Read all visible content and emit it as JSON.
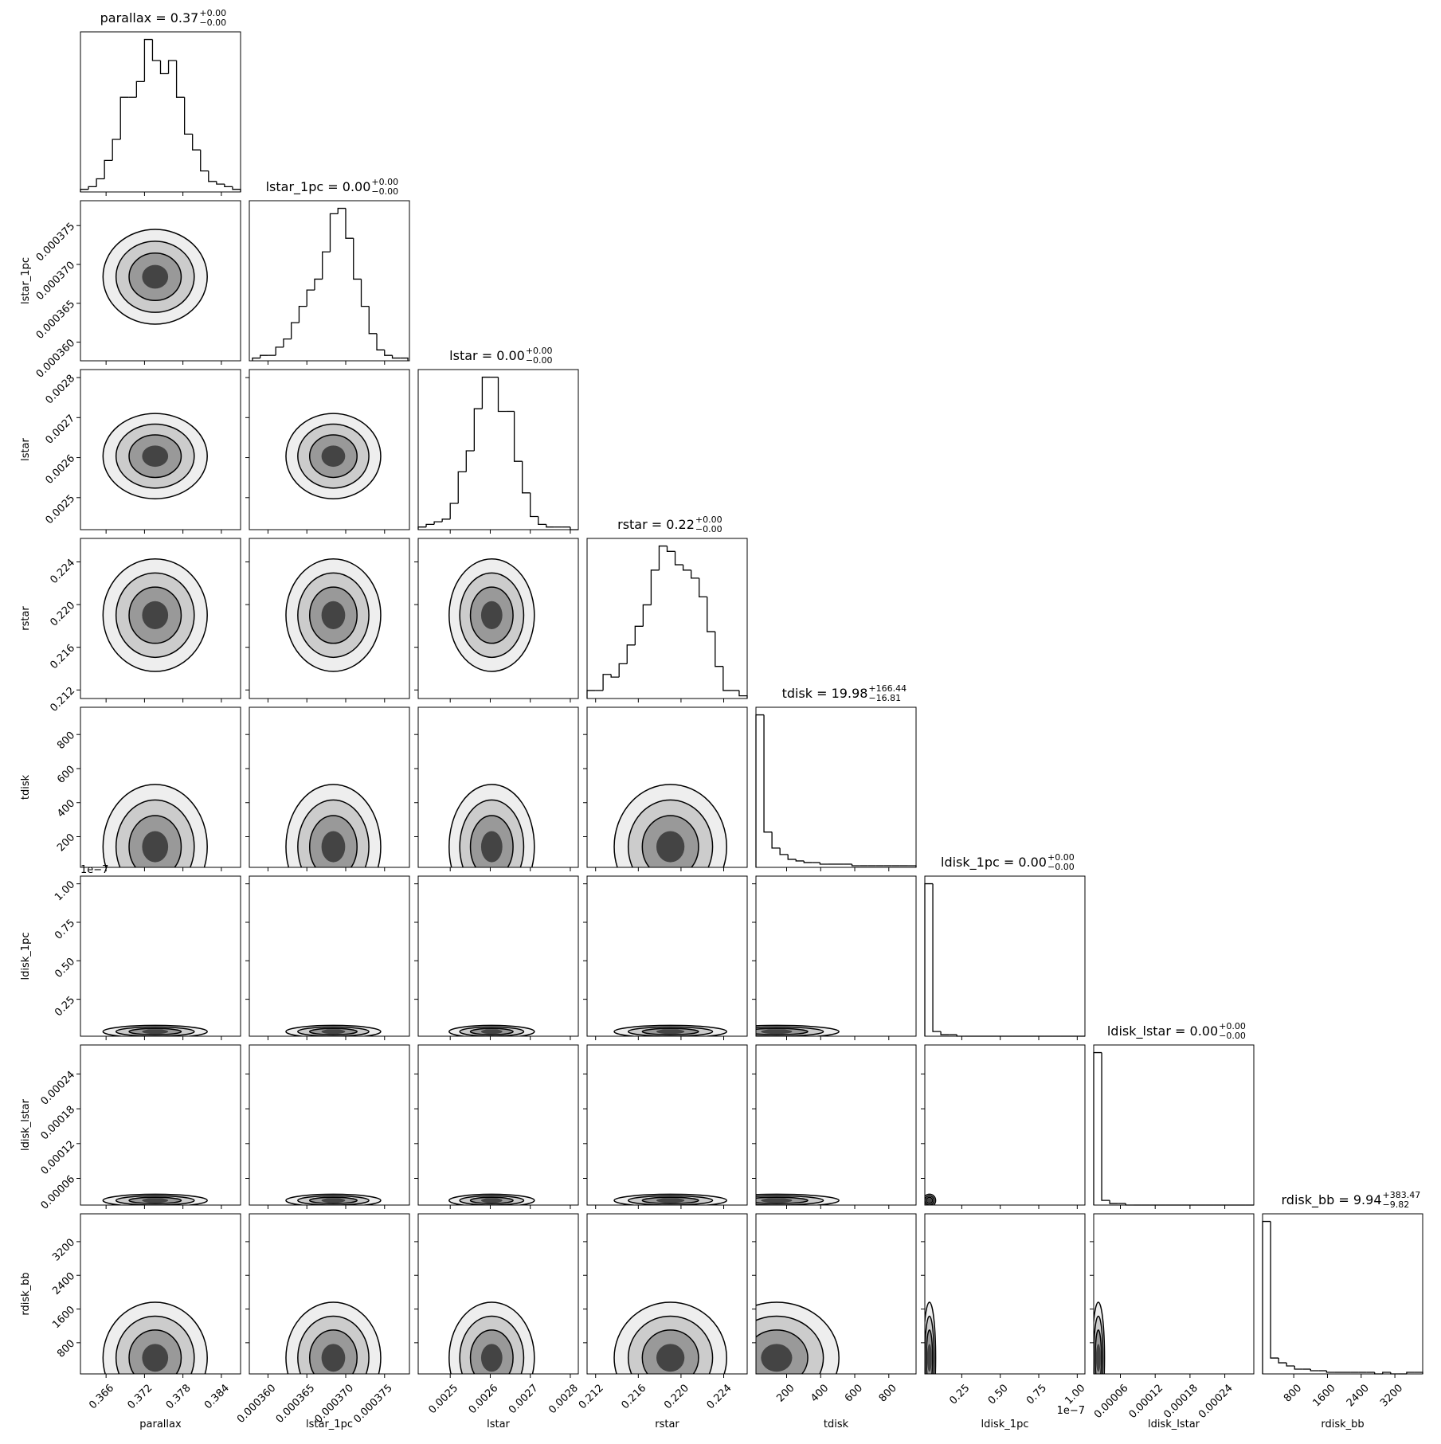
{
  "chart_data": {
    "type": "corner",
    "variables": [
      {
        "name": "parallax",
        "title": "parallax = 0.37",
        "upper": "+0.00",
        "lower": "−0.00",
        "lim": [
          0.362,
          0.387
        ],
        "ticks": [
          0.366,
          0.372,
          0.378,
          0.384
        ],
        "bins": [
          0.362,
          0.36325,
          0.3645,
          0.36575,
          0.367,
          0.36825,
          0.3695,
          0.37075,
          0.372,
          0.37325,
          0.3745,
          0.37575,
          0.377,
          0.37825,
          0.3795,
          0.38075,
          0.382,
          0.38325,
          0.3845,
          0.38575,
          0.387
        ],
        "counts": [
          1,
          2,
          5,
          12,
          20,
          36,
          36,
          42,
          58,
          50,
          45,
          50,
          36,
          22,
          16,
          8,
          4,
          3,
          2,
          1
        ]
      },
      {
        "name": "lstar_1pc",
        "title": "lstar_1pc = 0.00",
        "upper": "+0.00",
        "lower": "−0.00",
        "lim": [
          0.0003576,
          0.0003782
        ],
        "ticks": [
          {
            "value": 0.00036,
            "label": "0.000360"
          },
          0.000365,
          {
            "value": 0.00037,
            "label": "0.000370"
          },
          0.000375
        ],
        "bins": [
          0.000358,
          0.000359,
          0.00036,
          0.000361,
          0.000362,
          0.000363,
          0.000364,
          0.000365,
          0.000366,
          0.000367,
          0.000368,
          0.000369,
          0.00037,
          0.000371,
          0.000372,
          0.000373,
          0.000374,
          0.000375,
          0.000376,
          0.000377,
          0.000378
        ],
        "counts": [
          1,
          2,
          2,
          5,
          8,
          14,
          20,
          26,
          30,
          40,
          54,
          56,
          45,
          30,
          20,
          10,
          4,
          2,
          1,
          1
        ]
      },
      {
        "name": "lstar",
        "title": "lstar = 0.00",
        "upper": "+0.00",
        "lower": "−0.00",
        "lim": [
          0.00242,
          0.00282
        ],
        "ticks": [
          0.0025,
          0.0026,
          0.0027,
          0.0028
        ],
        "bins": [
          0.00242,
          0.00244,
          0.00246,
          0.00248,
          0.0025,
          0.00252,
          0.00254,
          0.00256,
          0.00258,
          0.0026,
          0.00262,
          0.00264,
          0.00266,
          0.00268,
          0.0027,
          0.00272,
          0.00274,
          0.00276,
          0.00278,
          0.0028,
          0.00282
        ],
        "counts": [
          1,
          2,
          3,
          4,
          10,
          22,
          30,
          46,
          58,
          58,
          45,
          45,
          26,
          14,
          5,
          2,
          1,
          1,
          1,
          0
        ]
      },
      {
        "name": "rstar",
        "title": "rstar = 0.22",
        "upper": "+0.00",
        "lower": "−0.00",
        "lim": [
          0.2112,
          0.2262
        ],
        "ticks": [
          0.212,
          0.216,
          {
            "value": 0.22,
            "label": "0.220"
          },
          0.224
        ],
        "bins": [
          0.2112,
          0.21195,
          0.2127,
          0.21345,
          0.2142,
          0.21495,
          0.2157,
          0.21645,
          0.2172,
          0.21795,
          0.2187,
          0.21945,
          0.2202,
          0.22095,
          0.2217,
          0.22245,
          0.2232,
          0.22395,
          0.2247,
          0.22545,
          0.2262
        ],
        "counts": [
          3,
          3,
          9,
          8,
          13,
          20,
          27,
          35,
          48,
          57,
          55,
          50,
          48,
          45,
          38,
          25,
          12,
          3,
          3,
          1
        ]
      },
      {
        "name": "tdisk",
        "title": "tdisk = 19.98",
        "upper": "+166.44",
        "lower": "−16.81",
        "lim": [
          20,
          960
        ],
        "ticks": [
          200,
          400,
          600,
          800
        ],
        "bins": [
          20,
          67,
          114,
          161,
          208,
          255,
          302,
          349,
          396,
          443,
          490,
          537,
          584,
          631,
          678,
          725,
          772,
          819,
          866,
          913,
          960
        ],
        "counts": [
          95,
          22,
          12,
          8,
          5,
          4,
          3,
          3,
          2,
          2,
          2,
          2,
          1,
          1,
          1,
          1,
          1,
          1,
          1,
          1
        ]
      },
      {
        "name": "ldisk_1pc",
        "title": "ldisk_1pc = 0.00",
        "upper": "+0.00",
        "lower": "−0.00",
        "offset": "1e−7",
        "lim": [
          1e-09,
          1.05e-07
        ],
        "ticks": [
          {
            "value": 2.5e-08,
            "label": "0.25"
          },
          {
            "value": 5e-08,
            "label": "0.50"
          },
          {
            "value": 7.5e-08,
            "label": "0.75"
          },
          {
            "value": 1e-07,
            "label": "1.00"
          }
        ],
        "bins": [
          1e-09,
          6.2e-09,
          1.14e-08,
          1.66e-08,
          2.18e-08,
          2.7e-08,
          3.22e-08,
          3.74e-08,
          4.26e-08,
          4.78e-08,
          5.3e-08,
          5.82e-08,
          6.34e-08,
          6.86e-08,
          7.38e-08,
          7.9e-08,
          8.42e-08,
          8.94e-08,
          9.46e-08,
          9.98e-08,
          1.05e-07
        ],
        "counts": [
          98,
          3,
          1,
          1,
          0,
          0,
          0,
          0,
          0,
          0,
          0,
          0,
          0,
          0,
          0,
          0,
          0,
          0,
          0,
          0
        ]
      },
      {
        "name": "ldisk_lstar",
        "title": "ldisk_lstar = 0.00",
        "upper": "+0.00",
        "lower": "−0.00",
        "lim": [
          1.4e-05,
          0.00029
        ],
        "ticks": [
          6e-05,
          0.00012,
          0.00018,
          0.00024
        ],
        "bins": [
          1.4e-05,
          2.78e-05,
          4.16e-05,
          5.54e-05,
          6.92e-05,
          8.3e-05,
          9.68e-05,
          0.0001106,
          0.0001244,
          0.0001382,
          0.000152,
          0.0001658,
          0.0001796,
          0.0001934,
          0.0002072,
          0.000221,
          0.0002348,
          0.0002486,
          0.0002624,
          0.0002762,
          0.00029
        ],
        "counts": [
          98,
          3,
          1,
          1,
          0,
          0,
          0,
          0,
          0,
          0,
          0,
          0,
          0,
          0,
          0,
          0,
          0,
          0,
          0,
          0
        ]
      },
      {
        "name": "rdisk_bb",
        "title": "rdisk_bb = 9.94",
        "upper": "+383.47",
        "lower": "−9.82",
        "lim": [
          60,
          3860
        ],
        "ticks": [
          800,
          1600,
          2400,
          3200
        ],
        "bins": [
          60,
          250,
          440,
          630,
          820,
          1010,
          1200,
          1390,
          1580,
          1770,
          1960,
          2150,
          2340,
          2530,
          2720,
          2910,
          3100,
          3290,
          3480,
          3670,
          3860
        ],
        "counts": [
          96,
          10,
          7,
          5,
          3,
          3,
          2,
          2,
          1,
          1,
          1,
          1,
          1,
          1,
          0,
          1,
          0,
          0,
          1,
          1
        ]
      }
    ]
  }
}
